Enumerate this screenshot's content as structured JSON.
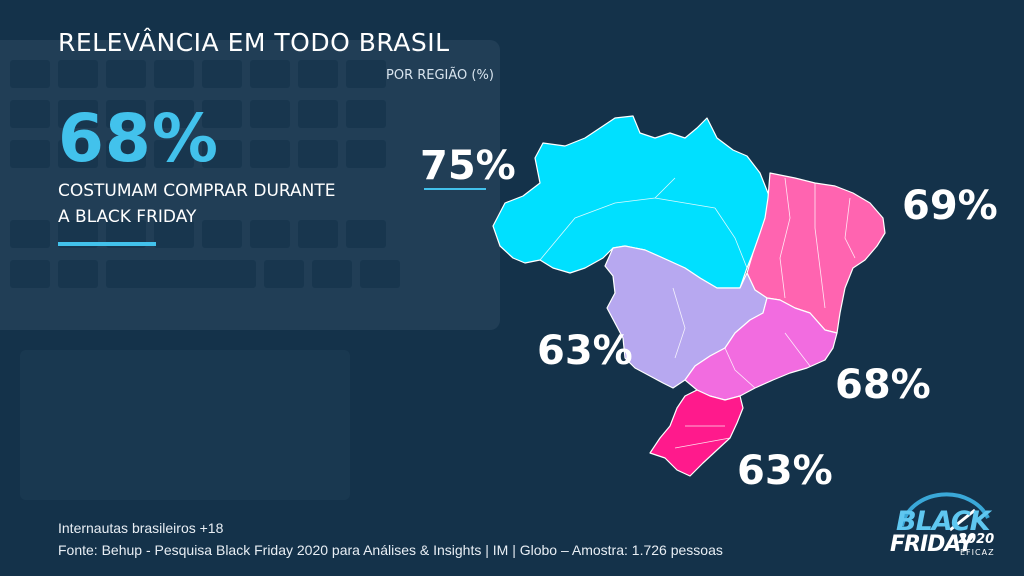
{
  "title": "RELEVÂNCIA EM TODO BRASIL",
  "subtitle": "POR REGIÃO (%)",
  "headline_stat": "68%",
  "headline_caption_1": "COSTUMAM COMPRAR DURANTE",
  "headline_caption_2": "A BLACK FRIDAY",
  "regions": {
    "norte": {
      "value": "75%",
      "color": "#00e0ff"
    },
    "nordeste": {
      "value": "69%",
      "color": "#ff64b0"
    },
    "centro_oeste": {
      "value": "63%",
      "color": "#b7a8f0"
    },
    "sudeste": {
      "value": "68%",
      "color": "#f26ce0"
    },
    "sul": {
      "value": "63%",
      "color": "#ff1a8c"
    }
  },
  "footnote_1": "Internautas brasileiros +18",
  "footnote_2": "Fonte: Behup - Pesquisa Black Friday 2020 para Análises & Insights | IM | Globo – Amostra: 1.726 pessoas",
  "logo": {
    "word1": "BLACK",
    "word2": "FRIDAY",
    "year": "2020",
    "tag": "EFICAZ"
  },
  "colors": {
    "accent": "#42c2ec",
    "background": "#14324a"
  }
}
